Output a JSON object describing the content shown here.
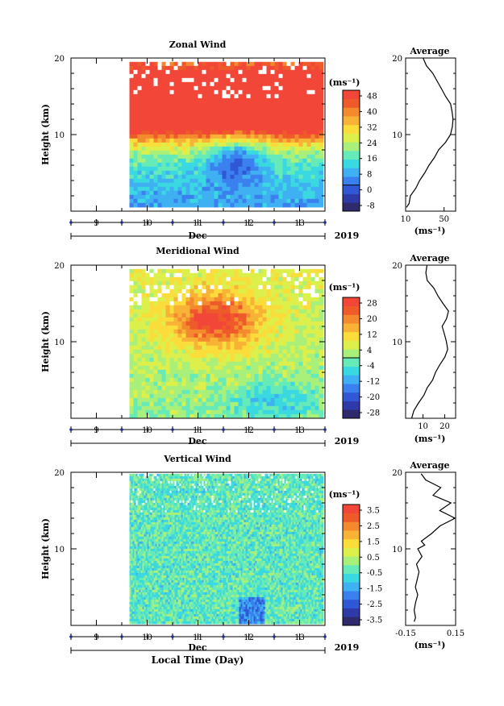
{
  "x_axis": {
    "label": "Local Time (Day)",
    "month": "Dec",
    "year": "2019",
    "ticks": [
      "9",
      "10",
      "11",
      "12",
      "13"
    ]
  },
  "units": "(ms⁻¹)",
  "colorscale": [
    "#2e2a6b",
    "#2e3aa8",
    "#2f57d6",
    "#3a80ee",
    "#3fb0f2",
    "#3ad8e0",
    "#66eab8",
    "#a8f07a",
    "#dcef4a",
    "#fadd3a",
    "#f8b236",
    "#f48a2e",
    "#ee5a2a",
    "#f24738"
  ],
  "chart_data": [
    {
      "type": "heatmap",
      "title": "Zonal Wind",
      "ylabel": "Height (km)",
      "xlim": [
        8.5,
        13.5
      ],
      "ylim": [
        0,
        20
      ],
      "x_ticks": [
        9,
        10,
        11,
        12,
        13
      ],
      "y_ticks": [
        10,
        20
      ],
      "data_extent": {
        "x": [
          9.65,
          13.4
        ],
        "y": [
          1,
          19.5
        ]
      },
      "colorbar": {
        "ticks": [
          "48",
          "40",
          "32",
          "24",
          "16",
          "8",
          "0",
          "-8"
        ],
        "range": [
          -12,
          52
        ]
      },
      "field_kind": "zonal",
      "average": {
        "title": "Average",
        "xlabel": "(ms⁻¹)",
        "x_ticks": [
          "10",
          "50"
        ],
        "xlim": [
          10,
          62
        ],
        "y_ticks": [
          10,
          20
        ],
        "profile_z": [
          0.5,
          1,
          2,
          3,
          4,
          5,
          6,
          7,
          8,
          9,
          10,
          11,
          12,
          13,
          14,
          15,
          16,
          17,
          18,
          19,
          20
        ],
        "profile_u": [
          12,
          13,
          15,
          20,
          25,
          29,
          34,
          39,
          45,
          52,
          57,
          59,
          60,
          59,
          56,
          52,
          47,
          42,
          38,
          32,
          28
        ]
      }
    },
    {
      "type": "heatmap",
      "title": "Meridional Wind",
      "ylabel": "Height (km)",
      "xlim": [
        8.5,
        13.5
      ],
      "ylim": [
        0,
        20
      ],
      "x_ticks": [
        9,
        10,
        11,
        12,
        13
      ],
      "y_ticks": [
        10,
        20
      ],
      "data_extent": {
        "x": [
          9.65,
          13.4
        ],
        "y": [
          0,
          19.5
        ]
      },
      "colorbar": {
        "ticks": [
          "28",
          "20",
          "12",
          "4",
          "-4",
          "-12",
          "-20",
          "-28"
        ],
        "range": [
          -30,
          32
        ]
      },
      "field_kind": "meridional",
      "average": {
        "title": "Average",
        "xlabel": "(ms⁻¹)",
        "x_ticks": [
          "10",
          "20"
        ],
        "xlim": [
          2,
          25
        ],
        "y_ticks": [
          10,
          20
        ],
        "profile_z": [
          0,
          1,
          2,
          3,
          4,
          5,
          6,
          7,
          8,
          9,
          10,
          11,
          12,
          13,
          14,
          15,
          16,
          17,
          18,
          19,
          20
        ],
        "profile_u": [
          5,
          6,
          8,
          10,
          12,
          14,
          16,
          18,
          20,
          21,
          21,
          20,
          19,
          21,
          22,
          19,
          17,
          15,
          12,
          11,
          12
        ]
      }
    },
    {
      "type": "heatmap",
      "title": "Vertical Wind",
      "ylabel": "Height (km)",
      "xlim": [
        8.5,
        13.5
      ],
      "ylim": [
        0,
        20
      ],
      "x_ticks": [
        9,
        10,
        11,
        12,
        13
      ],
      "y_ticks": [
        10,
        20
      ],
      "data_extent": {
        "x": [
          9.65,
          13.45
        ],
        "y": [
          0.5,
          19.8
        ]
      },
      "colorbar": {
        "ticks": [
          "3.5",
          "2.5",
          "1.5",
          "0.5",
          "-0.5",
          "-1.5",
          "-2.5",
          "-3.5"
        ],
        "range": [
          -4,
          4
        ]
      },
      "field_kind": "vertical",
      "average": {
        "title": "Average",
        "xlabel": "(ms⁻¹)",
        "x_ticks": [
          "-0.15",
          "0.15"
        ],
        "xlim": [
          -0.15,
          0.15
        ],
        "y_ticks": [
          10,
          20
        ],
        "profile_z": [
          0.5,
          1,
          2,
          3,
          4,
          5,
          6,
          7,
          8,
          9,
          10,
          10.5,
          11,
          12,
          13,
          14,
          15,
          16,
          17,
          18,
          19,
          19.8
        ],
        "profile_u": [
          -0.1,
          -0.09,
          -0.1,
          -0.09,
          -0.08,
          -0.09,
          -0.08,
          -0.07,
          -0.08,
          -0.05,
          -0.08,
          -0.03,
          -0.06,
          0.0,
          0.06,
          0.15,
          0.06,
          0.12,
          0.02,
          0.06,
          -0.03,
          -0.06
        ]
      }
    }
  ]
}
